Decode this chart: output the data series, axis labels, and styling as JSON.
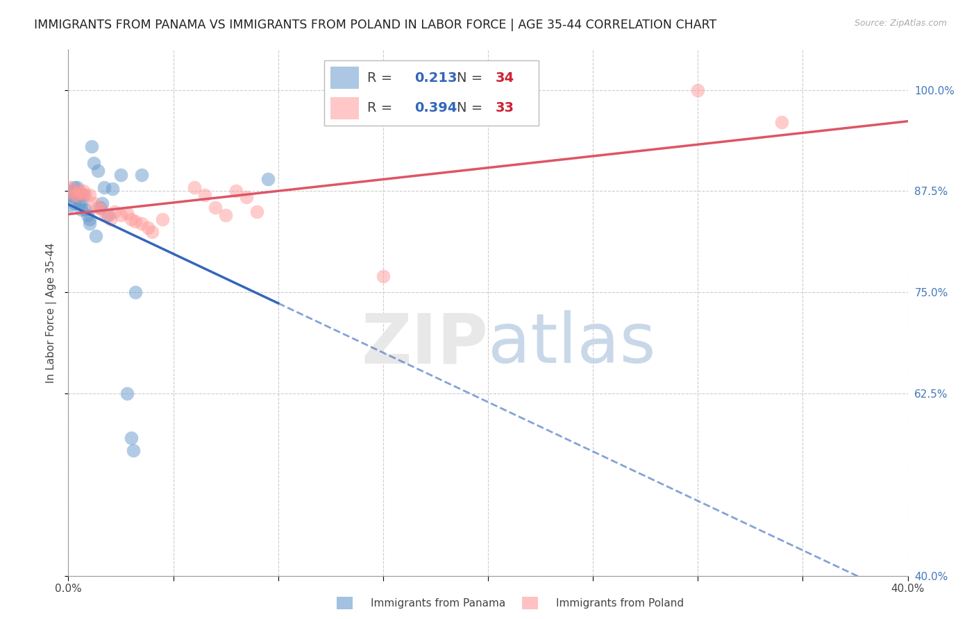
{
  "title": "IMMIGRANTS FROM PANAMA VS IMMIGRANTS FROM POLAND IN LABOR FORCE | AGE 35-44 CORRELATION CHART",
  "source": "Source: ZipAtlas.com",
  "ylabel": "In Labor Force | Age 35-44",
  "xlim": [
    0.0,
    0.4
  ],
  "ylim": [
    0.4,
    1.05
  ],
  "yticks": [
    0.4,
    0.625,
    0.75,
    0.875,
    1.0
  ],
  "ytick_labels": [
    "40.0%",
    "62.5%",
    "75.0%",
    "87.5%",
    "100.0%"
  ],
  "xticks": [
    0.0,
    0.05,
    0.1,
    0.15,
    0.2,
    0.25,
    0.3,
    0.35,
    0.4
  ],
  "xtick_labels": [
    "0.0%",
    "",
    "",
    "",
    "",
    "",
    "",
    "",
    "40.0%"
  ],
  "panama_color": "#6699cc",
  "poland_color": "#ff9999",
  "panama_label": "Immigrants from Panama",
  "poland_label": "Immigrants from Poland",
  "R_panama": 0.213,
  "N_panama": 34,
  "R_poland": 0.394,
  "N_poland": 33,
  "panama_x": [
    0.001,
    0.001,
    0.002,
    0.002,
    0.003,
    0.003,
    0.003,
    0.004,
    0.004,
    0.005,
    0.005,
    0.006,
    0.006,
    0.007,
    0.008,
    0.009,
    0.01,
    0.01,
    0.011,
    0.012,
    0.013,
    0.014,
    0.015,
    0.016,
    0.017,
    0.019,
    0.021,
    0.025,
    0.028,
    0.03,
    0.031,
    0.032,
    0.035,
    0.095
  ],
  "panama_y": [
    0.857,
    0.87,
    0.87,
    0.875,
    0.86,
    0.875,
    0.88,
    0.872,
    0.88,
    0.86,
    0.87,
    0.852,
    0.86,
    0.87,
    0.852,
    0.845,
    0.835,
    0.84,
    0.93,
    0.91,
    0.82,
    0.9,
    0.855,
    0.86,
    0.88,
    0.845,
    0.878,
    0.895,
    0.625,
    0.57,
    0.555,
    0.75,
    0.895,
    0.89
  ],
  "poland_x": [
    0.001,
    0.002,
    0.003,
    0.004,
    0.005,
    0.006,
    0.007,
    0.008,
    0.01,
    0.012,
    0.014,
    0.016,
    0.018,
    0.02,
    0.022,
    0.025,
    0.028,
    0.03,
    0.032,
    0.035,
    0.038,
    0.04,
    0.045,
    0.06,
    0.065,
    0.07,
    0.075,
    0.08,
    0.085,
    0.09,
    0.15,
    0.3,
    0.34
  ],
  "poland_y": [
    0.88,
    0.875,
    0.87,
    0.87,
    0.875,
    0.873,
    0.875,
    0.87,
    0.87,
    0.86,
    0.855,
    0.852,
    0.845,
    0.84,
    0.85,
    0.845,
    0.848,
    0.84,
    0.838,
    0.835,
    0.83,
    0.825,
    0.84,
    0.88,
    0.87,
    0.855,
    0.845,
    0.875,
    0.868,
    0.85,
    0.77,
    1.0,
    0.96
  ],
  "watermark_zip": "ZIP",
  "watermark_atlas": "atlas",
  "background_color": "#ffffff",
  "grid_color": "#cccccc",
  "axis_label_color": "#444444",
  "right_tick_color": "#4477bb",
  "title_fontsize": 12.5,
  "label_fontsize": 11,
  "tick_fontsize": 11,
  "legend_fontsize": 14
}
